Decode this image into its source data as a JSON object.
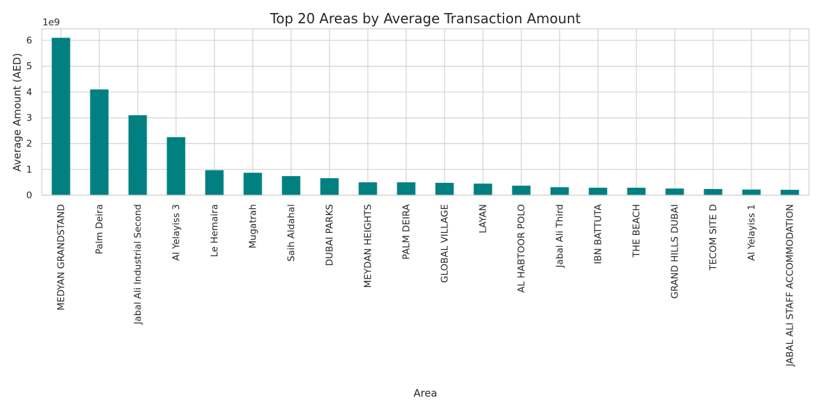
{
  "chart_data": {
    "type": "bar",
    "title": "Top 20 Areas by Average Transaction Amount",
    "xlabel": "Area",
    "ylabel": "Average Amount (AED)",
    "y_offset_text": "1e9",
    "y_scale": 1000000000,
    "ylim": [
      0,
      6.45
    ],
    "yticks": [
      0,
      1,
      2,
      3,
      4,
      5,
      6
    ],
    "grid": true,
    "legend": "none",
    "colors": {
      "bar": "#008080",
      "grid": "#d2d2d2",
      "frame": "#cfcfcf",
      "text": "#262626"
    },
    "categories": [
      "MEDYAN GRANDSTAND",
      "Palm Deira",
      "Jabal Ali Industrial Second",
      "Al Yelayiss 3",
      "Le Hemaira",
      "Mugatrah",
      "Saih Aldahal",
      "DUBAI PARKS",
      "MEYDAN HEIGHTS",
      "PALM DEIRA",
      "GLOBAL VILLAGE",
      "LAYAN",
      "AL HABTOOR POLO",
      "Jabal Ali Third",
      "IBN BATTUTA",
      "THE BEACH",
      "GRAND HILLS DUBAI",
      "TECOM SITE D",
      "Al Yelayiss 1",
      "JABAL ALI STAFF ACCOMMODATION"
    ],
    "values": [
      6.1,
      4.1,
      3.1,
      2.25,
      0.97,
      0.87,
      0.74,
      0.66,
      0.5,
      0.5,
      0.48,
      0.45,
      0.37,
      0.31,
      0.29,
      0.29,
      0.26,
      0.24,
      0.22,
      0.21
    ]
  }
}
